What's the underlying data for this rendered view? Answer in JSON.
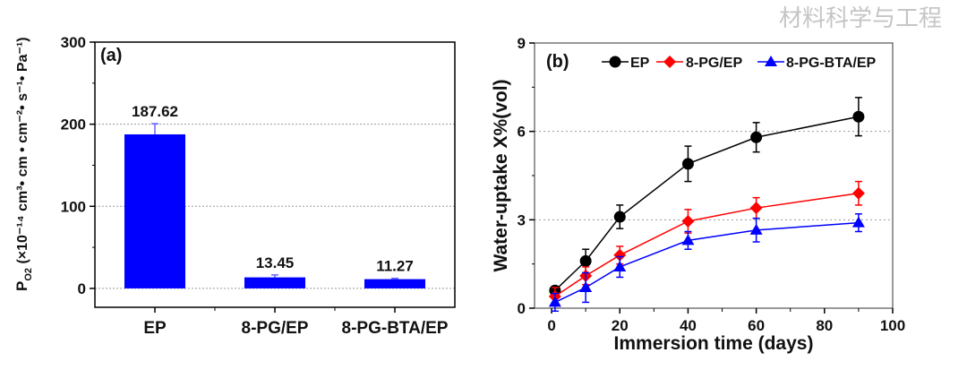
{
  "chart_data": [
    {
      "type": "bar",
      "panel_label": "(a)",
      "ylabel_main": "P",
      "ylabel_sub": "O2",
      "ylabel_rest": "(×10⁻¹⁴ cm³• cm • cm⁻²• s⁻¹• Pa⁻¹)",
      "categories": [
        "EP",
        "8-PG/EP",
        "8-PG-BTA/EP"
      ],
      "values": [
        187.62,
        13.45,
        11.27
      ],
      "errors": [
        13,
        3,
        1
      ],
      "data_labels": [
        "187.62",
        "13.45",
        "11.27"
      ],
      "ylim": [
        -23,
        300
      ],
      "yticks": [
        0,
        100,
        200,
        300
      ],
      "grid": "horizontal dotted",
      "bar_color": "#0000ff"
    },
    {
      "type": "line",
      "panel_label": "(b)",
      "xlabel": "Immersion time (days)",
      "ylabel": "Water-uptake X%(vol)",
      "xlim": [
        -5,
        100
      ],
      "ylim": [
        0,
        9
      ],
      "xticks": [
        0,
        20,
        40,
        60,
        80,
        100
      ],
      "yticks": [
        0,
        3,
        6,
        9
      ],
      "grid": "horizontal dotted",
      "legend": "top",
      "series": [
        {
          "name": "EP",
          "color": "#000000",
          "marker": "circle",
          "x": [
            1,
            10,
            20,
            40,
            60,
            90
          ],
          "y": [
            0.6,
            1.6,
            3.1,
            4.9,
            5.8,
            6.5
          ],
          "err": [
            0.1,
            0.4,
            0.4,
            0.6,
            0.5,
            0.65
          ]
        },
        {
          "name": "8-PG/EP",
          "color": "#ff0000",
          "marker": "diamond",
          "x": [
            1,
            10,
            20,
            40,
            60,
            90
          ],
          "y": [
            0.4,
            1.1,
            1.8,
            2.95,
            3.4,
            3.9
          ],
          "err": [
            0.3,
            0.3,
            0.3,
            0.4,
            0.35,
            0.4
          ]
        },
        {
          "name": "8-PG-BTA/EP",
          "color": "#0000ff",
          "marker": "triangle",
          "x": [
            1,
            10,
            20,
            40,
            60,
            90
          ],
          "y": [
            0.2,
            0.7,
            1.4,
            2.3,
            2.65,
            2.9
          ],
          "err": [
            0.3,
            0.5,
            0.35,
            0.3,
            0.4,
            0.3
          ]
        }
      ]
    }
  ],
  "watermark": "材料科学与工程"
}
